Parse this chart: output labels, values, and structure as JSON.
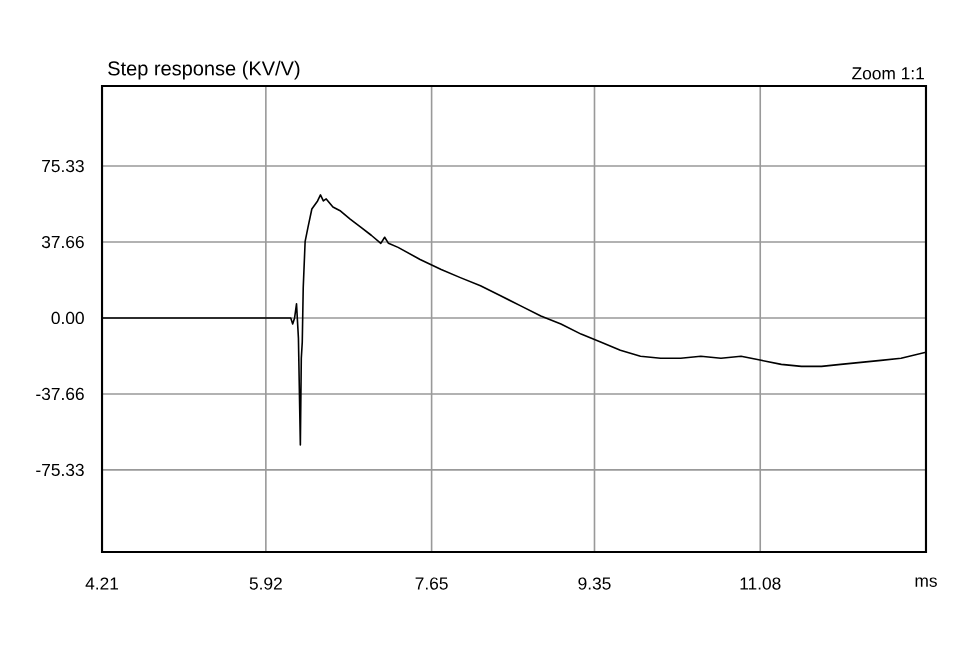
{
  "chart_data": {
    "type": "line",
    "title": "Step response (KV/V)",
    "annotations": [
      "Zoom 1:1"
    ],
    "x": [
      4.21,
      6.18,
      6.2,
      6.22,
      6.24,
      6.26,
      6.28,
      6.29,
      6.3,
      6.31,
      6.33,
      6.36,
      6.4,
      6.46,
      6.49,
      6.52,
      6.55,
      6.62,
      6.7,
      6.8,
      6.91,
      7.02,
      7.12,
      7.16,
      7.2,
      7.3,
      7.53,
      7.75,
      7.95,
      8.16,
      8.37,
      8.58,
      8.79,
      9.0,
      9.21,
      9.42,
      9.62,
      9.83,
      10.04,
      10.25,
      10.46,
      10.67,
      10.88,
      11.09,
      11.3,
      11.51,
      11.72,
      11.92,
      12.13,
      12.34,
      12.55,
      12.81
    ],
    "series": [
      {
        "color": "#000000",
        "values": [
          0,
          0,
          -3,
          0,
          7,
          -10,
          -63,
          -20,
          -12,
          15,
          38,
          45,
          54,
          58,
          61,
          58,
          59,
          55,
          53,
          49,
          45,
          41,
          37,
          40,
          37,
          35,
          29,
          24,
          20,
          16,
          11,
          6,
          1,
          -3,
          -8,
          -12,
          -16,
          -19,
          -20,
          -20,
          -19,
          -20,
          -19,
          -21,
          -23,
          -24,
          -24,
          -23,
          -22,
          -21,
          -20,
          -17
        ]
      }
    ],
    "xlim": [
      4.21,
      12.81
    ],
    "xticks": [
      4.21,
      5.92,
      7.65,
      9.35,
      11.08,
      {
        "value": 12.81,
        "label": "ms"
      }
    ],
    "ylim": [
      -116,
      115
    ],
    "yticks": [
      -75.33,
      -37.66,
      {
        "value": 0,
        "label": "0.00"
      },
      37.66,
      75.33
    ],
    "grid": true,
    "marker": "none",
    "line_style": "solid"
  }
}
